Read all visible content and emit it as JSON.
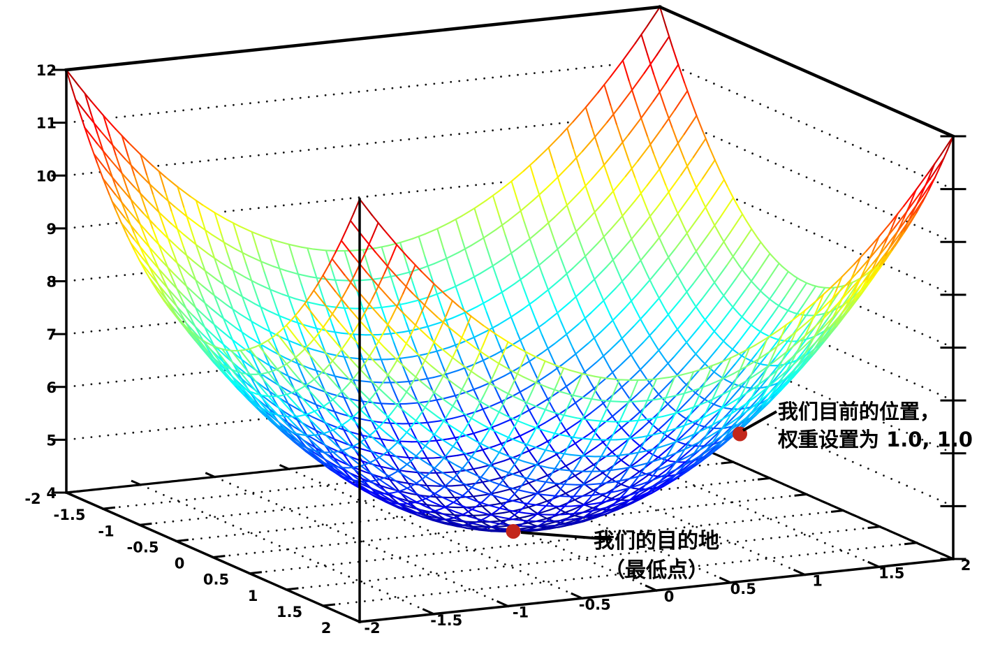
{
  "figure": {
    "background": "#ffffff"
  },
  "chart_data": {
    "type": "3d-surface-wireframe",
    "title": "",
    "surface": {
      "function": "z = 4 + x^2 + y^2",
      "x_range": [
        -2,
        2
      ],
      "y_range": [
        -2,
        2
      ],
      "z_range": [
        4,
        12
      ],
      "mesh_divisions": 32,
      "colormap": "jet",
      "grid_style": "dotted"
    },
    "axes": {
      "x_tick_labels": [
        "-2",
        "-1.5",
        "-1",
        "-0.5",
        "0",
        "0.5",
        "1",
        "1.5",
        "2"
      ],
      "y_tick_labels": [
        "-2",
        "-1.5",
        "-1",
        "-0.5",
        "0",
        "0.5",
        "1",
        "1.5",
        "2"
      ],
      "z_tick_labels": [
        "4",
        "5",
        "6",
        "7",
        "8",
        "9",
        "10",
        "11",
        "12"
      ]
    },
    "annotations": [
      {
        "id": "current-position",
        "line1": "我们目前的位置，",
        "line2": "权重设置为 1.0, 1.0",
        "point": {
          "x": 1.0,
          "y": 1.0,
          "z": 6.0
        },
        "marker_color": "#c3271b"
      },
      {
        "id": "destination",
        "line1": "我们的目的地",
        "line2": "（最低点）",
        "point": {
          "x": 0.0,
          "y": 0.0,
          "z": 4.0
        },
        "marker_color": "#c3271b"
      }
    ],
    "line_color": "#000000",
    "dot_grid_color": "#141414"
  }
}
